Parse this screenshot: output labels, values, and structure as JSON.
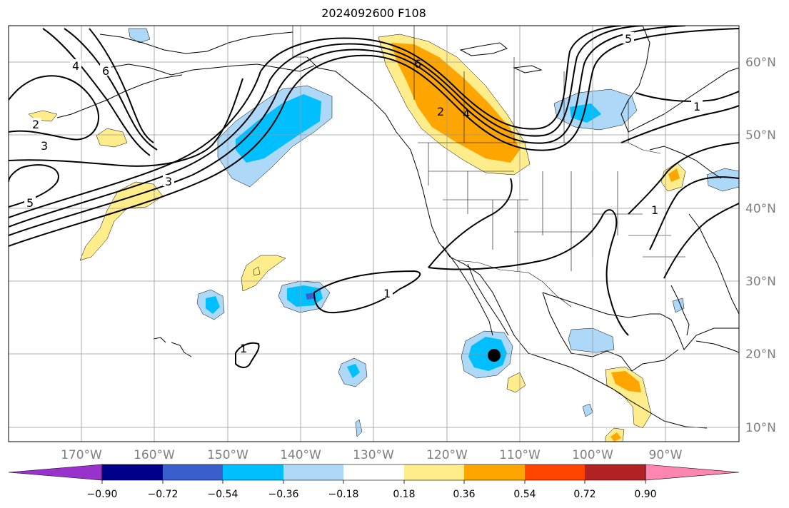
{
  "title": "2024092600 F108",
  "lon_labels": [
    "170°W",
    "160°W",
    "150°W",
    "140°W",
    "130°W",
    "120°W",
    "110°W",
    "100°W",
    "90°W"
  ],
  "lat_labels": [
    "60°N",
    "50°N",
    "40°N",
    "30°N",
    "20°N",
    "10°N"
  ],
  "colorbar": {
    "colors": [
      "#9932cc",
      "#00008b",
      "#3a5fcd",
      "#00bfff",
      "#add8f7",
      "#ffffff",
      "#ffec8b",
      "#ffa500",
      "#ff4500",
      "#b22222",
      "#ff86b0"
    ],
    "tick_labels": [
      "−0.90",
      "−0.72",
      "−0.54",
      "−0.36",
      "−0.18",
      "0.18",
      "0.36",
      "0.54",
      "0.72",
      "0.90"
    ]
  },
  "contour_labels": [
    "2",
    "3",
    "3",
    "5",
    "4",
    "6",
    "6",
    "2",
    "4",
    "5",
    "1",
    "1",
    "1",
    "1"
  ],
  "storm_marker": "black-dot"
}
